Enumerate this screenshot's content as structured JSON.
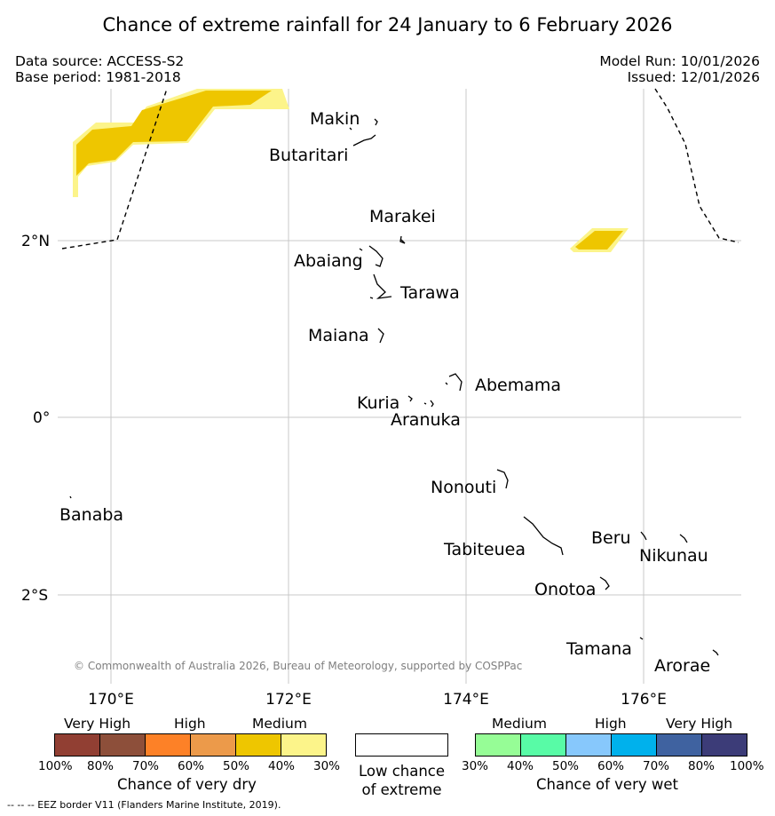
{
  "title": "Chance of extreme rainfall for 24 January to 6 February 2026",
  "data_source": "Data source: ACCESS-S2",
  "base_period": "Base period: 1981-2018",
  "model_run": "Model Run: 10/01/2026",
  "issued": "Issued: 12/01/2026",
  "copyright": "© Commonwealth of Australia 2026, Bureau of Meteorology, supported by COSPPac",
  "axes": {
    "lat_labels": [
      "2°N",
      "0°",
      "2°S"
    ],
    "lon_labels": [
      "170°E",
      "172°E",
      "174°E",
      "176°E"
    ]
  },
  "islands": {
    "makin": "Makin",
    "butaritari": "Butaritari",
    "marakei": "Marakei",
    "abaiang": "Abaiang",
    "tarawa": "Tarawa",
    "maiana": "Maiana",
    "abemama": "Abemama",
    "kuria": "Kuria",
    "aranuka": "Aranuka",
    "nonouti": "Nonouti",
    "banaba": "Banaba",
    "tabiteuea": "Tabiteuea",
    "beru": "Beru",
    "nikunau": "Nikunau",
    "onotoa": "Onotoa",
    "tamana": "Tamana",
    "arorae": "Arorae"
  },
  "legend": {
    "dry": {
      "categories": [
        "Very High",
        "High",
        "Medium"
      ],
      "percents": [
        "100%",
        "80%",
        "70%",
        "60%",
        "50%",
        "40%",
        "30%"
      ],
      "colors": [
        "#913f33",
        "#8d4f3a",
        "#fd8127",
        "#ec9a4a",
        "#eec600",
        "#fcf48a"
      ],
      "title": "Chance of very dry"
    },
    "low": {
      "line1": "Low chance",
      "line2": "of extreme"
    },
    "wet": {
      "categories": [
        "Medium",
        "High",
        "Very High"
      ],
      "percents": [
        "30%",
        "40%",
        "50%",
        "60%",
        "70%",
        "80%",
        "100%"
      ],
      "colors": [
        "#96fd96",
        "#58fba6",
        "#87c8fc",
        "#00b1ec",
        "#3f62a0",
        "#3c3c78"
      ],
      "title": "Chance of very wet"
    }
  },
  "footer": "--  --  -- EEZ border V11 (Flanders Marine Institute, 2019)."
}
